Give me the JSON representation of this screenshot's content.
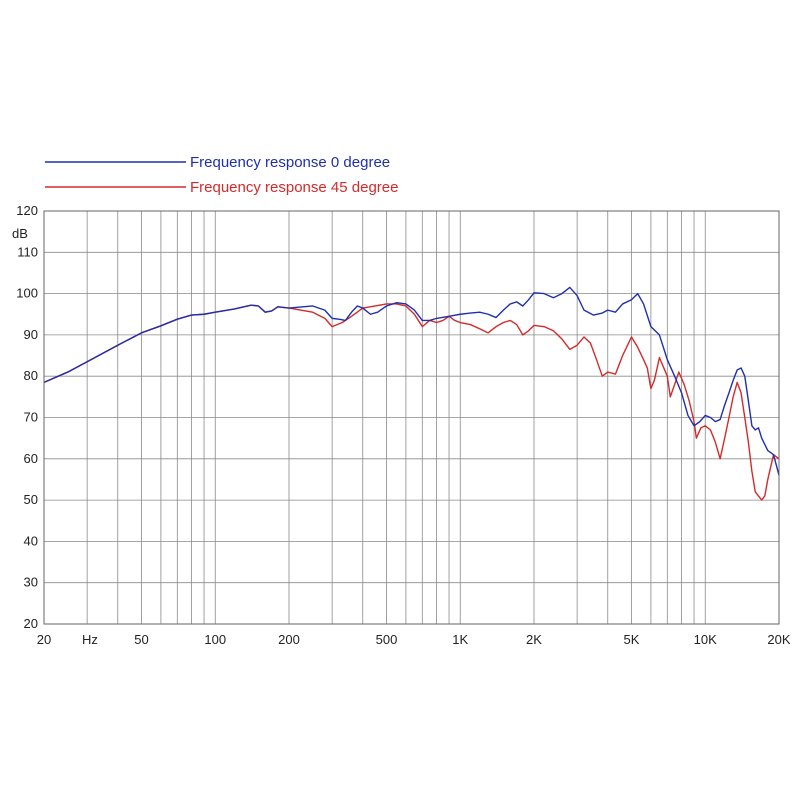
{
  "chart_data": {
    "type": "line",
    "title": "",
    "xlabel": "",
    "ylabel": "dB",
    "x_unit_label": "Hz",
    "x_scale": "log",
    "xlim": [
      20,
      20000
    ],
    "ylim": [
      20,
      120
    ],
    "grid": true,
    "legend_position": "top-left",
    "x_ticks": [
      {
        "value": 20,
        "label": "20"
      },
      {
        "value": 50,
        "label": "50"
      },
      {
        "value": 100,
        "label": "100"
      },
      {
        "value": 200,
        "label": "200"
      },
      {
        "value": 500,
        "label": "500"
      },
      {
        "value": 1000,
        "label": "1K"
      },
      {
        "value": 2000,
        "label": "2K"
      },
      {
        "value": 5000,
        "label": "5K"
      },
      {
        "value": 10000,
        "label": "10K"
      },
      {
        "value": 20000,
        "label": "20K"
      }
    ],
    "y_ticks": [
      {
        "value": 120,
        "label": "120"
      },
      {
        "value": 110,
        "label": "110"
      },
      {
        "value": 100,
        "label": "100"
      },
      {
        "value": 90,
        "label": "90"
      },
      {
        "value": 80,
        "label": "80"
      },
      {
        "value": 70,
        "label": "70"
      },
      {
        "value": 60,
        "label": "60"
      },
      {
        "value": 50,
        "label": "50"
      },
      {
        "value": 40,
        "label": "40"
      },
      {
        "value": 30,
        "label": "30"
      },
      {
        "value": 20,
        "label": "20"
      }
    ],
    "series": [
      {
        "name": "Frequency response 0 degree",
        "color": "#1f2fb0",
        "points": [
          [
            20,
            78.5
          ],
          [
            25,
            81
          ],
          [
            30,
            83.5
          ],
          [
            40,
            87.5
          ],
          [
            50,
            90.5
          ],
          [
            60,
            92.2
          ],
          [
            70,
            93.8
          ],
          [
            80,
            94.8
          ],
          [
            90,
            95
          ],
          [
            100,
            95.5
          ],
          [
            120,
            96.3
          ],
          [
            140,
            97.2
          ],
          [
            150,
            97
          ],
          [
            160,
            95.5
          ],
          [
            170,
            95.8
          ],
          [
            180,
            96.8
          ],
          [
            200,
            96.5
          ],
          [
            250,
            97
          ],
          [
            280,
            96
          ],
          [
            300,
            94
          ],
          [
            320,
            93.8
          ],
          [
            340,
            93.5
          ],
          [
            360,
            95.5
          ],
          [
            380,
            97
          ],
          [
            400,
            96.5
          ],
          [
            430,
            95
          ],
          [
            460,
            95.5
          ],
          [
            500,
            97
          ],
          [
            550,
            97.8
          ],
          [
            600,
            97.5
          ],
          [
            650,
            96
          ],
          [
            700,
            93.5
          ],
          [
            750,
            93.5
          ],
          [
            800,
            94
          ],
          [
            900,
            94.5
          ],
          [
            1000,
            95
          ],
          [
            1100,
            95.3
          ],
          [
            1200,
            95.5
          ],
          [
            1300,
            95
          ],
          [
            1400,
            94.2
          ],
          [
            1500,
            96
          ],
          [
            1600,
            97.5
          ],
          [
            1700,
            98
          ],
          [
            1800,
            97
          ],
          [
            1900,
            98.5
          ],
          [
            2000,
            100.2
          ],
          [
            2200,
            100
          ],
          [
            2400,
            99
          ],
          [
            2600,
            100
          ],
          [
            2800,
            101.5
          ],
          [
            3000,
            99.5
          ],
          [
            3200,
            96
          ],
          [
            3500,
            94.8
          ],
          [
            3800,
            95.3
          ],
          [
            4000,
            96
          ],
          [
            4300,
            95.5
          ],
          [
            4600,
            97.5
          ],
          [
            5000,
            98.5
          ],
          [
            5300,
            100
          ],
          [
            5600,
            97.5
          ],
          [
            6000,
            92
          ],
          [
            6500,
            90
          ],
          [
            7000,
            84
          ],
          [
            7500,
            80
          ],
          [
            8000,
            76
          ],
          [
            8500,
            70.5
          ],
          [
            9000,
            68
          ],
          [
            9500,
            69
          ],
          [
            10000,
            70.5
          ],
          [
            10500,
            70
          ],
          [
            11000,
            69
          ],
          [
            11500,
            69.5
          ],
          [
            12000,
            73
          ],
          [
            12500,
            76
          ],
          [
            13000,
            79
          ],
          [
            13500,
            81.5
          ],
          [
            14000,
            82
          ],
          [
            14500,
            80
          ],
          [
            15000,
            74
          ],
          [
            15500,
            68
          ],
          [
            16000,
            67
          ],
          [
            16500,
            67.5
          ],
          [
            17000,
            65
          ],
          [
            18000,
            62
          ],
          [
            19000,
            61
          ],
          [
            20000,
            56
          ]
        ]
      },
      {
        "name": "Frequency response 45 degree",
        "color": "#d42a2a",
        "points": [
          [
            20,
            78.5
          ],
          [
            25,
            81
          ],
          [
            30,
            83.5
          ],
          [
            40,
            87.5
          ],
          [
            50,
            90.5
          ],
          [
            60,
            92.2
          ],
          [
            70,
            93.8
          ],
          [
            80,
            94.8
          ],
          [
            90,
            95
          ],
          [
            100,
            95.5
          ],
          [
            120,
            96.3
          ],
          [
            140,
            97.2
          ],
          [
            150,
            97
          ],
          [
            160,
            95.5
          ],
          [
            170,
            95.8
          ],
          [
            180,
            96.8
          ],
          [
            200,
            96.5
          ],
          [
            250,
            95.5
          ],
          [
            280,
            94
          ],
          [
            300,
            92
          ],
          [
            330,
            93
          ],
          [
            360,
            94.5
          ],
          [
            400,
            96.5
          ],
          [
            450,
            97
          ],
          [
            500,
            97.5
          ],
          [
            550,
            97.5
          ],
          [
            600,
            97
          ],
          [
            650,
            95
          ],
          [
            700,
            92
          ],
          [
            750,
            93.5
          ],
          [
            800,
            93
          ],
          [
            850,
            93.5
          ],
          [
            900,
            94.5
          ],
          [
            950,
            93.5
          ],
          [
            1000,
            93
          ],
          [
            1100,
            92.5
          ],
          [
            1200,
            91.5
          ],
          [
            1300,
            90.5
          ],
          [
            1400,
            92
          ],
          [
            1500,
            93
          ],
          [
            1600,
            93.5
          ],
          [
            1700,
            92.5
          ],
          [
            1800,
            90
          ],
          [
            1900,
            91
          ],
          [
            2000,
            92.3
          ],
          [
            2200,
            92
          ],
          [
            2400,
            91
          ],
          [
            2600,
            89
          ],
          [
            2800,
            86.5
          ],
          [
            3000,
            87.5
          ],
          [
            3200,
            89.5
          ],
          [
            3400,
            88
          ],
          [
            3600,
            84
          ],
          [
            3800,
            80
          ],
          [
            4000,
            81
          ],
          [
            4300,
            80.5
          ],
          [
            4600,
            85
          ],
          [
            5000,
            89.5
          ],
          [
            5300,
            87
          ],
          [
            5600,
            84
          ],
          [
            5800,
            82
          ],
          [
            6000,
            77
          ],
          [
            6200,
            79
          ],
          [
            6500,
            84.5
          ],
          [
            7000,
            80
          ],
          [
            7200,
            75
          ],
          [
            7500,
            78
          ],
          [
            7800,
            81
          ],
          [
            8200,
            78
          ],
          [
            8600,
            74
          ],
          [
            9000,
            69
          ],
          [
            9200,
            65
          ],
          [
            9600,
            67.5
          ],
          [
            10000,
            68
          ],
          [
            10500,
            67
          ],
          [
            11000,
            64
          ],
          [
            11500,
            60
          ],
          [
            12000,
            65
          ],
          [
            12500,
            70
          ],
          [
            13000,
            75
          ],
          [
            13500,
            78.5
          ],
          [
            14000,
            76
          ],
          [
            14500,
            70
          ],
          [
            15000,
            64
          ],
          [
            15500,
            57
          ],
          [
            16000,
            52
          ],
          [
            17000,
            50
          ],
          [
            17500,
            51
          ],
          [
            18000,
            55
          ],
          [
            19000,
            61
          ],
          [
            20000,
            60
          ]
        ]
      }
    ]
  }
}
